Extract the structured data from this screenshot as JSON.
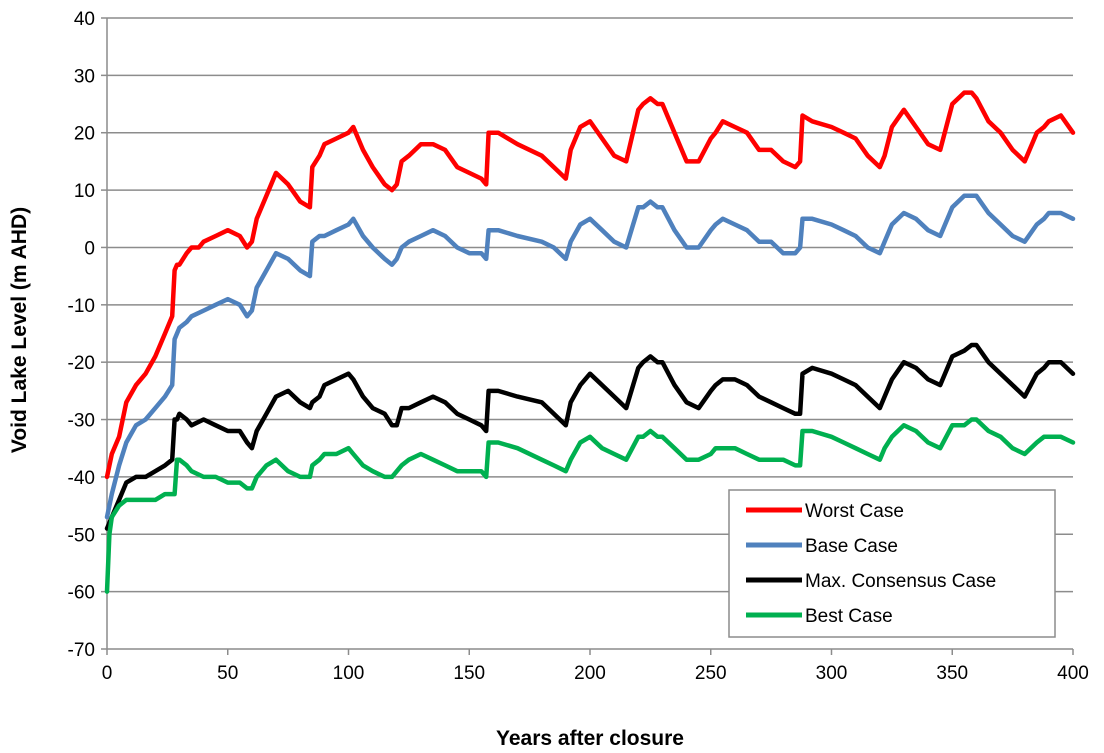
{
  "chart_data": {
    "type": "line",
    "title": "",
    "xlabel": "Years after closure",
    "ylabel": "Void Lake Level (m AHD)",
    "xlim": [
      0,
      400
    ],
    "ylim": [
      -70,
      40
    ],
    "xticks": [
      0,
      50,
      100,
      150,
      200,
      250,
      300,
      350,
      400
    ],
    "yticks": [
      40,
      30,
      20,
      10,
      0,
      -10,
      -20,
      -30,
      -40,
      -50,
      -60,
      -70
    ],
    "grid": "horizontal",
    "legend_position": "bottom-right",
    "series": [
      {
        "name": "Worst Case",
        "color": "#ff0000",
        "x": [
          0,
          2,
          5,
          8,
          12,
          16,
          20,
          24,
          27,
          28,
          29,
          30,
          33,
          35,
          38,
          40,
          45,
          50,
          55,
          58,
          60,
          62,
          66,
          70,
          75,
          80,
          84,
          85,
          88,
          90,
          95,
          100,
          102,
          106,
          110,
          115,
          118,
          120,
          122,
          125,
          130,
          135,
          140,
          145,
          150,
          155,
          157,
          158,
          162,
          170,
          180,
          185,
          190,
          192,
          196,
          200,
          205,
          210,
          215,
          220,
          222,
          225,
          228,
          230,
          235,
          240,
          245,
          250,
          252,
          255,
          260,
          265,
          270,
          275,
          280,
          285,
          287,
          288,
          292,
          300,
          305,
          310,
          315,
          320,
          322,
          325,
          330,
          335,
          340,
          345,
          350,
          355,
          358,
          360,
          365,
          370,
          375,
          380,
          385,
          388,
          390,
          395,
          400
        ],
        "y": [
          -40,
          -36,
          -33,
          -27,
          -24,
          -22,
          -19,
          -15,
          -12,
          -4,
          -3,
          -3,
          -1,
          0,
          0,
          1,
          2,
          3,
          2,
          0,
          1,
          5,
          9,
          13,
          11,
          8,
          7,
          14,
          16,
          18,
          19,
          20,
          21,
          17,
          14,
          11,
          10,
          11,
          15,
          16,
          18,
          18,
          17,
          14,
          13,
          12,
          11,
          20,
          20,
          18,
          16,
          14,
          12,
          17,
          21,
          22,
          19,
          16,
          15,
          24,
          25,
          26,
          25,
          25,
          20,
          15,
          15,
          19,
          20,
          22,
          21,
          20,
          17,
          17,
          15,
          14,
          15,
          23,
          22,
          21,
          20,
          19,
          16,
          14,
          16,
          21,
          24,
          21,
          18,
          17,
          25,
          27,
          27,
          26,
          22,
          20,
          17,
          15,
          20,
          21,
          22,
          23,
          20
        ]
      },
      {
        "name": "Base Case",
        "color": "#4f81bd",
        "x": [
          0,
          2,
          5,
          8,
          12,
          16,
          20,
          24,
          27,
          28,
          29,
          30,
          33,
          35,
          40,
          45,
          50,
          55,
          58,
          60,
          62,
          66,
          70,
          75,
          80,
          84,
          85,
          88,
          90,
          95,
          100,
          102,
          106,
          110,
          115,
          118,
          120,
          122,
          125,
          130,
          135,
          140,
          145,
          150,
          155,
          157,
          158,
          162,
          170,
          180,
          185,
          190,
          192,
          196,
          200,
          205,
          210,
          215,
          220,
          222,
          225,
          228,
          230,
          235,
          240,
          245,
          250,
          252,
          255,
          260,
          265,
          270,
          275,
          280,
          285,
          287,
          288,
          292,
          300,
          305,
          310,
          315,
          320,
          322,
          325,
          330,
          335,
          340,
          345,
          350,
          355,
          358,
          360,
          365,
          370,
          375,
          380,
          385,
          388,
          390,
          395,
          400
        ],
        "y": [
          -47,
          -43,
          -38,
          -34,
          -31,
          -30,
          -28,
          -26,
          -24,
          -16,
          -15,
          -14,
          -13,
          -12,
          -11,
          -10,
          -9,
          -10,
          -12,
          -11,
          -7,
          -4,
          -1,
          -2,
          -4,
          -5,
          1,
          2,
          2,
          3,
          4,
          5,
          2,
          0,
          -2,
          -3,
          -2,
          0,
          1,
          2,
          3,
          2,
          0,
          -1,
          -1,
          -2,
          3,
          3,
          2,
          1,
          0,
          -2,
          1,
          4,
          5,
          3,
          1,
          0,
          7,
          7,
          8,
          7,
          7,
          3,
          0,
          0,
          3,
          4,
          5,
          4,
          3,
          1,
          1,
          -1,
          -1,
          0,
          5,
          5,
          4,
          3,
          2,
          0,
          -1,
          1,
          4,
          6,
          5,
          3,
          2,
          7,
          9,
          9,
          9,
          6,
          4,
          2,
          1,
          4,
          5,
          6,
          6,
          5
        ]
      },
      {
        "name": "Max. Consensus Case",
        "color": "#000000",
        "x": [
          0,
          2,
          5,
          8,
          12,
          16,
          20,
          24,
          27,
          28,
          29,
          30,
          33,
          35,
          40,
          45,
          50,
          55,
          58,
          60,
          62,
          66,
          70,
          75,
          80,
          84,
          85,
          88,
          90,
          95,
          100,
          102,
          106,
          110,
          115,
          118,
          120,
          122,
          125,
          130,
          135,
          140,
          145,
          150,
          155,
          157,
          158,
          162,
          170,
          180,
          185,
          190,
          192,
          196,
          200,
          205,
          210,
          215,
          220,
          222,
          225,
          228,
          230,
          235,
          240,
          245,
          250,
          252,
          255,
          260,
          265,
          270,
          275,
          280,
          285,
          287,
          288,
          292,
          300,
          305,
          310,
          315,
          320,
          322,
          325,
          330,
          335,
          340,
          345,
          350,
          355,
          358,
          360,
          365,
          370,
          375,
          380,
          385,
          388,
          390,
          395,
          400
        ],
        "y": [
          -49,
          -47,
          -44,
          -41,
          -40,
          -40,
          -39,
          -38,
          -37,
          -30,
          -30,
          -29,
          -30,
          -31,
          -30,
          -31,
          -32,
          -32,
          -34,
          -35,
          -32,
          -29,
          -26,
          -25,
          -27,
          -28,
          -27,
          -26,
          -24,
          -23,
          -22,
          -23,
          -26,
          -28,
          -29,
          -31,
          -31,
          -28,
          -28,
          -27,
          -26,
          -27,
          -29,
          -30,
          -31,
          -32,
          -25,
          -25,
          -26,
          -27,
          -29,
          -31,
          -27,
          -24,
          -22,
          -24,
          -26,
          -28,
          -21,
          -20,
          -19,
          -20,
          -20,
          -24,
          -27,
          -28,
          -25,
          -24,
          -23,
          -23,
          -24,
          -26,
          -27,
          -28,
          -29,
          -29,
          -22,
          -21,
          -22,
          -23,
          -24,
          -26,
          -28,
          -26,
          -23,
          -20,
          -21,
          -23,
          -24,
          -19,
          -18,
          -17,
          -17,
          -20,
          -22,
          -24,
          -26,
          -22,
          -21,
          -20,
          -20,
          -22
        ]
      },
      {
        "name": "Best Case",
        "color": "#00b050",
        "x": [
          0,
          1,
          2,
          5,
          8,
          12,
          16,
          20,
          24,
          27,
          28,
          29,
          30,
          33,
          35,
          40,
          45,
          50,
          55,
          58,
          60,
          62,
          66,
          70,
          75,
          80,
          84,
          85,
          88,
          90,
          95,
          100,
          102,
          106,
          110,
          115,
          118,
          120,
          122,
          125,
          130,
          135,
          140,
          145,
          150,
          155,
          157,
          158,
          162,
          170,
          180,
          185,
          190,
          192,
          196,
          200,
          205,
          210,
          215,
          220,
          222,
          225,
          228,
          230,
          235,
          240,
          245,
          250,
          252,
          255,
          260,
          265,
          270,
          275,
          280,
          285,
          287,
          288,
          292,
          300,
          305,
          310,
          315,
          320,
          322,
          325,
          330,
          335,
          340,
          345,
          350,
          355,
          358,
          360,
          365,
          370,
          375,
          380,
          385,
          388,
          390,
          395,
          400
        ],
        "y": [
          -60,
          -50,
          -47,
          -45,
          -44,
          -44,
          -44,
          -44,
          -43,
          -43,
          -43,
          -37,
          -37,
          -38,
          -39,
          -40,
          -40,
          -41,
          -41,
          -42,
          -42,
          -40,
          -38,
          -37,
          -39,
          -40,
          -40,
          -38,
          -37,
          -36,
          -36,
          -35,
          -36,
          -38,
          -39,
          -40,
          -40,
          -39,
          -38,
          -37,
          -36,
          -37,
          -38,
          -39,
          -39,
          -39,
          -40,
          -34,
          -34,
          -35,
          -37,
          -38,
          -39,
          -37,
          -34,
          -33,
          -35,
          -36,
          -37,
          -33,
          -33,
          -32,
          -33,
          -33,
          -35,
          -37,
          -37,
          -36,
          -35,
          -35,
          -35,
          -36,
          -37,
          -37,
          -37,
          -38,
          -38,
          -32,
          -32,
          -33,
          -34,
          -35,
          -36,
          -37,
          -35,
          -33,
          -31,
          -32,
          -34,
          -35,
          -31,
          -31,
          -30,
          -30,
          -32,
          -33,
          -35,
          -36,
          -34,
          -33,
          -33,
          -33,
          -34
        ]
      }
    ]
  }
}
